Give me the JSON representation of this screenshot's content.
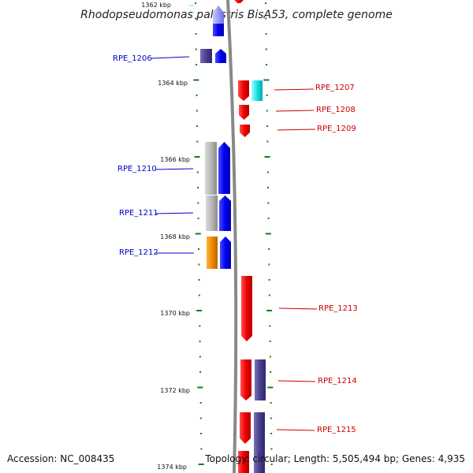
{
  "title": "Rhodopseudomonas palustris BisA53, complete genome",
  "footer": {
    "accession": "Accession: NC_008435",
    "topology": "Topology: circular; Length: 5,505,494 bp; Genes: 4,935"
  },
  "kbp_labels": [
    "1362 kbp",
    "1364 kbp",
    "1366 kbp",
    "1368 kbp",
    "1370 kbp",
    "1372 kbp",
    "1374 kbp"
  ],
  "gene_labels": {
    "rpe1206": "RPE_1206",
    "rpe1207": "RPE_1207",
    "rpe1208": "RPE_1208",
    "rpe1209": "RPE_1209",
    "rpe1210": "RPE_1210",
    "rpe1211": "RPE_1211",
    "rpe1212": "RPE_1212",
    "rpe1213": "RPE_1213",
    "rpe1214": "RPE_1214",
    "rpe1215": "RPE_1215"
  },
  "colors": {
    "forward_gene": "#0000ee",
    "reverse_gene": "#ee0000",
    "backbone": "#888888",
    "tick": "#1a7a1a"
  }
}
